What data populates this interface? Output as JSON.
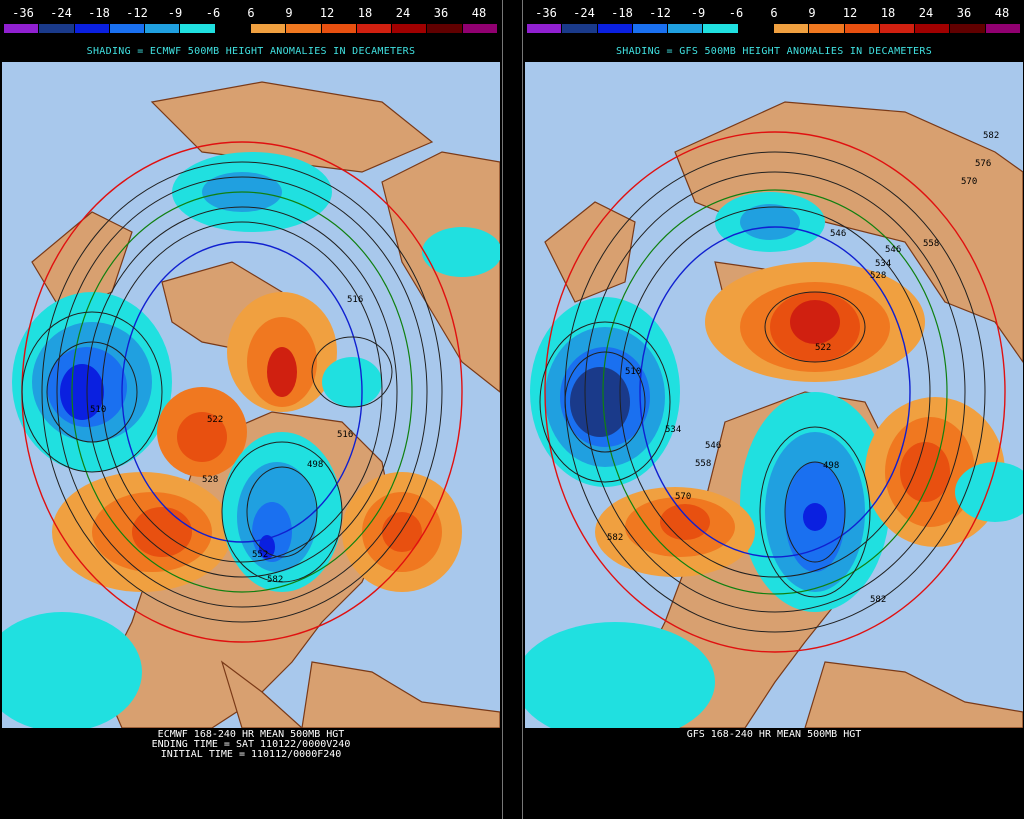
{
  "legend": {
    "labels": [
      "-36",
      "-24",
      "-18",
      "-12",
      "-9",
      "-6",
      "6",
      "9",
      "12",
      "18",
      "24",
      "36",
      "48"
    ],
    "colors": [
      "#9020d0",
      "#1a3a8a",
      "#0a20e0",
      "#1a70f0",
      "#20a0e0",
      "#20e0e0",
      "#000000",
      "#f0a040",
      "#f07820",
      "#e85010",
      "#d02010",
      "#a00000",
      "#600000",
      "#900070"
    ]
  },
  "left_panel": {
    "shading_title": "SHADING = ECMWF 500MB HEIGHT ANOMALIES IN DECAMETERS",
    "footer_lines": [
      "ECMWF 168-240 HR MEAN 500MB HGT",
      "ENDING TIME = SAT 110122/0000V240",
      "INITIAL TIME = 110112/0000F240"
    ],
    "contour_labels": [
      "510",
      "516",
      "522",
      "528",
      "552",
      "582",
      "516",
      "498"
    ]
  },
  "right_panel": {
    "shading_title": "SHADING = GFS 500MB HEIGHT ANOMALIES IN DECAMETERS",
    "footer_lines": [
      "GFS 168-240 HR MEAN 500MB HGT"
    ],
    "contour_labels": [
      "582",
      "576",
      "570",
      "558",
      "546",
      "546",
      "534",
      "528",
      "522",
      "510",
      "534",
      "546",
      "558",
      "570",
      "582",
      "498",
      "582"
    ]
  },
  "colors": {
    "ocean": "#a8c8ec",
    "land": "#d8a070",
    "coast": "#7a3a18",
    "contour": "#202020",
    "contour_blue": "#1020d0",
    "contour_green": "#108010",
    "contour_red": "#e01010"
  }
}
